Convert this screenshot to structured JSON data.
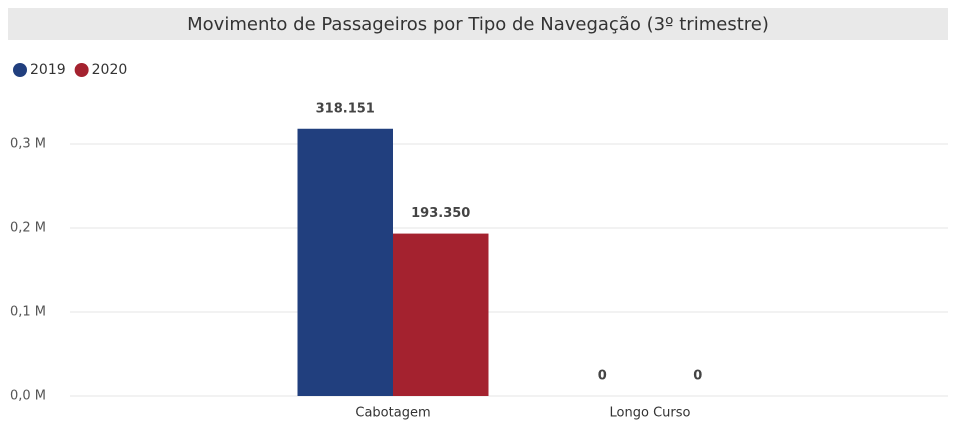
{
  "chart_data": {
    "type": "bar",
    "title": "Movimento de Passageiros por Tipo de Navegação (3º trimestre)",
    "categories": [
      "Cabotagem",
      "Longo Curso"
    ],
    "series": [
      {
        "name": "2019",
        "color": "#213f7e",
        "values": [
          318151,
          0
        ],
        "value_labels": [
          "318.151",
          "0"
        ]
      },
      {
        "name": "2020",
        "color": "#a4222f",
        "values": [
          193350,
          0
        ],
        "value_labels": [
          "193.350",
          "0"
        ]
      }
    ],
    "ylim": [
      0,
      350000
    ],
    "yticks": [
      {
        "value": 0,
        "label": "0,0 M"
      },
      {
        "value": 100000,
        "label": "0,1 M"
      },
      {
        "value": 200000,
        "label": "0,2 M"
      },
      {
        "value": 300000,
        "label": "0,3 M"
      }
    ],
    "grid": true,
    "legend": "top-left"
  }
}
